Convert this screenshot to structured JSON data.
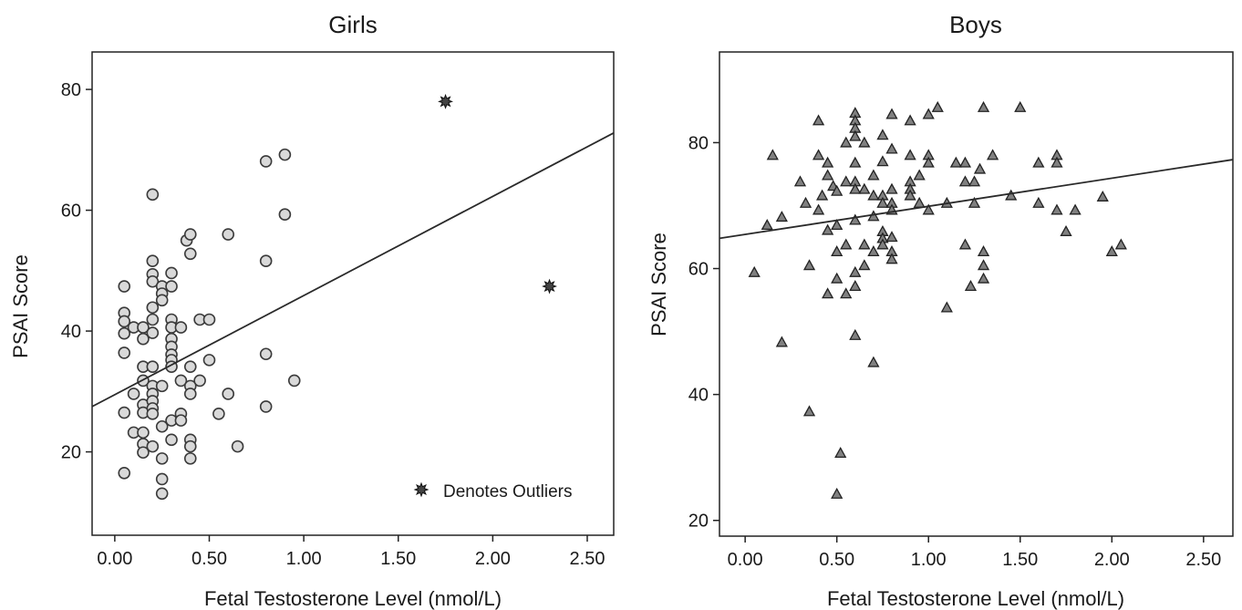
{
  "chart_data": [
    {
      "type": "scatter",
      "title": "Girls",
      "xlabel": "Fetal Testosterone Level (nmol/L)",
      "ylabel": "PSAI Score",
      "xlim": [
        -0.12,
        2.64
      ],
      "ylim": [
        6.2,
        86.2
      ],
      "xticks": [
        "0.00",
        "0.50",
        "1.00",
        "1.50",
        "2.00",
        "2.50"
      ],
      "yticks": [
        "20",
        "40",
        "60",
        "80"
      ],
      "marker": "circle",
      "marker_color": "#d9d9d9",
      "fit_line": {
        "x0": -0.12,
        "y0": 27.5,
        "x1": 2.64,
        "y1": 72.8
      },
      "legend": {
        "label": "Denotes Outliers",
        "position": "bottom-right"
      },
      "series": [
        {
          "points": [
            {
              "x": 0.05,
              "y": 47.4
            },
            {
              "x": 0.05,
              "y": 43.0
            },
            {
              "x": 0.05,
              "y": 41.6
            },
            {
              "x": 0.05,
              "y": 39.6
            },
            {
              "x": 0.05,
              "y": 36.4
            },
            {
              "x": 0.05,
              "y": 26.5
            },
            {
              "x": 0.05,
              "y": 16.5
            },
            {
              "x": 0.1,
              "y": 40.6
            },
            {
              "x": 0.1,
              "y": 29.6
            },
            {
              "x": 0.1,
              "y": 23.2
            },
            {
              "x": 0.15,
              "y": 40.6
            },
            {
              "x": 0.15,
              "y": 38.7
            },
            {
              "x": 0.15,
              "y": 34.1
            },
            {
              "x": 0.15,
              "y": 31.8
            },
            {
              "x": 0.15,
              "y": 27.8
            },
            {
              "x": 0.15,
              "y": 26.5
            },
            {
              "x": 0.15,
              "y": 23.2
            },
            {
              "x": 0.15,
              "y": 21.3
            },
            {
              "x": 0.15,
              "y": 19.9
            },
            {
              "x": 0.2,
              "y": 62.6
            },
            {
              "x": 0.2,
              "y": 51.6
            },
            {
              "x": 0.2,
              "y": 49.4
            },
            {
              "x": 0.2,
              "y": 48.2
            },
            {
              "x": 0.2,
              "y": 43.9
            },
            {
              "x": 0.2,
              "y": 41.9
            },
            {
              "x": 0.2,
              "y": 39.7
            },
            {
              "x": 0.2,
              "y": 34.1
            },
            {
              "x": 0.2,
              "y": 30.9
            },
            {
              "x": 0.2,
              "y": 29.6
            },
            {
              "x": 0.2,
              "y": 28.4
            },
            {
              "x": 0.2,
              "y": 27.2
            },
            {
              "x": 0.2,
              "y": 26.3
            },
            {
              "x": 0.2,
              "y": 20.9
            },
            {
              "x": 0.25,
              "y": 47.4
            },
            {
              "x": 0.25,
              "y": 46.2
            },
            {
              "x": 0.25,
              "y": 45.1
            },
            {
              "x": 0.25,
              "y": 30.9
            },
            {
              "x": 0.25,
              "y": 24.2
            },
            {
              "x": 0.25,
              "y": 18.9
            },
            {
              "x": 0.25,
              "y": 15.5
            },
            {
              "x": 0.25,
              "y": 13.1
            },
            {
              "x": 0.3,
              "y": 49.6
            },
            {
              "x": 0.3,
              "y": 47.4
            },
            {
              "x": 0.3,
              "y": 41.9
            },
            {
              "x": 0.3,
              "y": 40.6
            },
            {
              "x": 0.3,
              "y": 38.7
            },
            {
              "x": 0.3,
              "y": 37.4
            },
            {
              "x": 0.3,
              "y": 36.1
            },
            {
              "x": 0.3,
              "y": 35.2
            },
            {
              "x": 0.3,
              "y": 34.1
            },
            {
              "x": 0.3,
              "y": 25.2
            },
            {
              "x": 0.3,
              "y": 22.0
            },
            {
              "x": 0.35,
              "y": 40.6
            },
            {
              "x": 0.35,
              "y": 31.8
            },
            {
              "x": 0.35,
              "y": 26.3
            },
            {
              "x": 0.35,
              "y": 25.2
            },
            {
              "x": 0.38,
              "y": 55.0
            },
            {
              "x": 0.4,
              "y": 56.0
            },
            {
              "x": 0.4,
              "y": 52.8
            },
            {
              "x": 0.4,
              "y": 34.1
            },
            {
              "x": 0.4,
              "y": 30.9
            },
            {
              "x": 0.4,
              "y": 29.6
            },
            {
              "x": 0.4,
              "y": 22.0
            },
            {
              "x": 0.4,
              "y": 20.9
            },
            {
              "x": 0.4,
              "y": 18.9
            },
            {
              "x": 0.45,
              "y": 41.9
            },
            {
              "x": 0.45,
              "y": 31.8
            },
            {
              "x": 0.5,
              "y": 41.9
            },
            {
              "x": 0.5,
              "y": 35.2
            },
            {
              "x": 0.55,
              "y": 26.3
            },
            {
              "x": 0.6,
              "y": 56.0
            },
            {
              "x": 0.6,
              "y": 29.6
            },
            {
              "x": 0.65,
              "y": 20.9
            },
            {
              "x": 0.8,
              "y": 68.1
            },
            {
              "x": 0.8,
              "y": 51.6
            },
            {
              "x": 0.8,
              "y": 36.2
            },
            {
              "x": 0.8,
              "y": 27.5
            },
            {
              "x": 0.9,
              "y": 69.2
            },
            {
              "x": 0.9,
              "y": 59.3
            },
            {
              "x": 0.95,
              "y": 31.8
            }
          ]
        },
        {
          "name": "Denotes Outliers",
          "marker": "star",
          "points": [
            {
              "x": 1.75,
              "y": 78.0
            },
            {
              "x": 2.3,
              "y": 47.4
            }
          ]
        }
      ]
    },
    {
      "type": "scatter",
      "title": "Boys",
      "xlabel": "Fetal Testosterone Level (nmol/L)",
      "ylabel": "PSAI Score",
      "xlim": [
        -0.14,
        2.66
      ],
      "ylim": [
        17.5,
        94.4
      ],
      "xticks": [
        "0.00",
        "0.50",
        "1.00",
        "1.50",
        "2.00",
        "2.50"
      ],
      "yticks": [
        "20",
        "40",
        "60",
        "80"
      ],
      "marker": "triangle",
      "marker_color": "#808080",
      "fit_line": {
        "x0": -0.14,
        "y0": 64.8,
        "x1": 2.66,
        "y1": 77.3
      },
      "series": [
        {
          "points": [
            {
              "x": 0.05,
              "y": 59.4
            },
            {
              "x": 0.12,
              "y": 66.9
            },
            {
              "x": 0.15,
              "y": 78.0
            },
            {
              "x": 0.2,
              "y": 68.2
            },
            {
              "x": 0.2,
              "y": 48.3
            },
            {
              "x": 0.3,
              "y": 73.8
            },
            {
              "x": 0.33,
              "y": 70.4
            },
            {
              "x": 0.35,
              "y": 60.5
            },
            {
              "x": 0.35,
              "y": 37.3
            },
            {
              "x": 0.4,
              "y": 83.5
            },
            {
              "x": 0.4,
              "y": 78.0
            },
            {
              "x": 0.4,
              "y": 69.3
            },
            {
              "x": 0.42,
              "y": 71.6
            },
            {
              "x": 0.45,
              "y": 76.8
            },
            {
              "x": 0.45,
              "y": 74.8
            },
            {
              "x": 0.45,
              "y": 66.1
            },
            {
              "x": 0.45,
              "y": 56.0
            },
            {
              "x": 0.48,
              "y": 73.1
            },
            {
              "x": 0.5,
              "y": 72.3
            },
            {
              "x": 0.5,
              "y": 66.9
            },
            {
              "x": 0.5,
              "y": 62.7
            },
            {
              "x": 0.5,
              "y": 58.4
            },
            {
              "x": 0.5,
              "y": 24.2
            },
            {
              "x": 0.52,
              "y": 30.7
            },
            {
              "x": 0.55,
              "y": 80.0
            },
            {
              "x": 0.55,
              "y": 73.8
            },
            {
              "x": 0.55,
              "y": 63.8
            },
            {
              "x": 0.55,
              "y": 56.0
            },
            {
              "x": 0.6,
              "y": 84.7
            },
            {
              "x": 0.6,
              "y": 83.5
            },
            {
              "x": 0.6,
              "y": 82.3
            },
            {
              "x": 0.6,
              "y": 81.0
            },
            {
              "x": 0.6,
              "y": 76.8
            },
            {
              "x": 0.6,
              "y": 73.8
            },
            {
              "x": 0.6,
              "y": 72.6
            },
            {
              "x": 0.6,
              "y": 67.7
            },
            {
              "x": 0.6,
              "y": 59.4
            },
            {
              "x": 0.6,
              "y": 57.2
            },
            {
              "x": 0.6,
              "y": 49.4
            },
            {
              "x": 0.65,
              "y": 80.0
            },
            {
              "x": 0.65,
              "y": 72.6
            },
            {
              "x": 0.65,
              "y": 63.8
            },
            {
              "x": 0.65,
              "y": 60.5
            },
            {
              "x": 0.7,
              "y": 74.8
            },
            {
              "x": 0.7,
              "y": 71.6
            },
            {
              "x": 0.7,
              "y": 68.3
            },
            {
              "x": 0.7,
              "y": 62.7
            },
            {
              "x": 0.7,
              "y": 45.1
            },
            {
              "x": 0.75,
              "y": 81.2
            },
            {
              "x": 0.75,
              "y": 77.0
            },
            {
              "x": 0.75,
              "y": 71.6
            },
            {
              "x": 0.75,
              "y": 70.4
            },
            {
              "x": 0.75,
              "y": 65.9
            },
            {
              "x": 0.75,
              "y": 64.8
            },
            {
              "x": 0.75,
              "y": 63.8
            },
            {
              "x": 0.8,
              "y": 84.5
            },
            {
              "x": 0.8,
              "y": 79.0
            },
            {
              "x": 0.8,
              "y": 72.6
            },
            {
              "x": 0.8,
              "y": 70.4
            },
            {
              "x": 0.8,
              "y": 69.3
            },
            {
              "x": 0.8,
              "y": 65.0
            },
            {
              "x": 0.8,
              "y": 62.7
            },
            {
              "x": 0.8,
              "y": 61.5
            },
            {
              "x": 0.9,
              "y": 83.5
            },
            {
              "x": 0.9,
              "y": 78.0
            },
            {
              "x": 0.9,
              "y": 73.8
            },
            {
              "x": 0.9,
              "y": 72.6
            },
            {
              "x": 0.9,
              "y": 71.6
            },
            {
              "x": 0.95,
              "y": 74.8
            },
            {
              "x": 0.95,
              "y": 70.4
            },
            {
              "x": 1.0,
              "y": 84.5
            },
            {
              "x": 1.0,
              "y": 78.0
            },
            {
              "x": 1.0,
              "y": 76.8
            },
            {
              "x": 1.0,
              "y": 69.3
            },
            {
              "x": 1.05,
              "y": 85.6
            },
            {
              "x": 1.1,
              "y": 70.4
            },
            {
              "x": 1.1,
              "y": 53.8
            },
            {
              "x": 1.15,
              "y": 76.8
            },
            {
              "x": 1.2,
              "y": 76.8
            },
            {
              "x": 1.2,
              "y": 73.8
            },
            {
              "x": 1.2,
              "y": 63.8
            },
            {
              "x": 1.23,
              "y": 57.2
            },
            {
              "x": 1.25,
              "y": 73.8
            },
            {
              "x": 1.25,
              "y": 70.4
            },
            {
              "x": 1.28,
              "y": 75.8
            },
            {
              "x": 1.3,
              "y": 85.6
            },
            {
              "x": 1.3,
              "y": 62.7
            },
            {
              "x": 1.3,
              "y": 60.5
            },
            {
              "x": 1.3,
              "y": 58.4
            },
            {
              "x": 1.35,
              "y": 78.0
            },
            {
              "x": 1.45,
              "y": 71.6
            },
            {
              "x": 1.5,
              "y": 85.6
            },
            {
              "x": 1.6,
              "y": 76.8
            },
            {
              "x": 1.6,
              "y": 70.4
            },
            {
              "x": 1.7,
              "y": 78.0
            },
            {
              "x": 1.7,
              "y": 76.8
            },
            {
              "x": 1.7,
              "y": 69.3
            },
            {
              "x": 1.75,
              "y": 65.9
            },
            {
              "x": 1.8,
              "y": 69.3
            },
            {
              "x": 1.95,
              "y": 71.4
            },
            {
              "x": 2.0,
              "y": 62.7
            },
            {
              "x": 2.05,
              "y": 63.8
            }
          ]
        }
      ]
    }
  ]
}
